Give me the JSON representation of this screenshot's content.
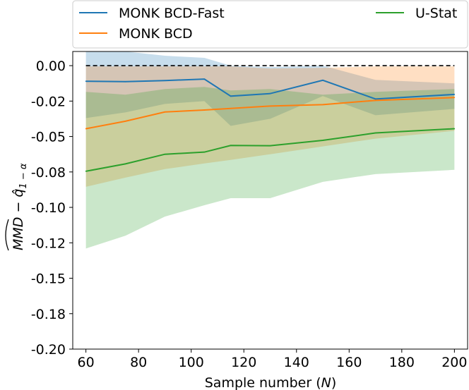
{
  "chart_data": {
    "type": "line",
    "title": "",
    "xlabel_prefix": "Sample number (",
    "xlabel_var": "N",
    "xlabel_suffix": ")",
    "ylabel_main": "MMD",
    "ylabel_minus": " − ",
    "ylabel_q": "q̂",
    "ylabel_sub": "1 − α",
    "xlim": [
      55,
      205
    ],
    "ylim": [
      -0.2,
      0.01
    ],
    "xticks": [
      60,
      80,
      100,
      120,
      140,
      160,
      180,
      200
    ],
    "xtick_labels": [
      "60",
      "80",
      "100",
      "120",
      "140",
      "160",
      "180",
      "200"
    ],
    "yticks": [
      0.0,
      -0.025,
      -0.05,
      -0.075,
      -0.1,
      -0.125,
      -0.15,
      -0.175,
      -0.2
    ],
    "ytick_labels": [
      "0.00",
      "-0.02",
      "-0.05",
      "-0.08",
      "-0.10",
      "-0.12",
      "-0.15",
      "-0.18",
      "-0.20"
    ],
    "reference_line": 0.0,
    "legend_position": "top",
    "series": [
      {
        "name": "MONK BCD-Fast",
        "color": "#1f77b4",
        "x": [
          60,
          75,
          90,
          105,
          115,
          130,
          150,
          170,
          200
        ],
        "values": [
          -0.011,
          -0.0113,
          -0.0105,
          -0.0095,
          -0.0215,
          -0.0197,
          -0.0103,
          -0.0235,
          -0.0203
        ],
        "upper": [
          0.01,
          0.01,
          0.007,
          0.0055,
          0.0,
          -0.001,
          0.0,
          -0.01,
          -0.0125
        ],
        "lower": [
          -0.037,
          -0.033,
          -0.027,
          -0.025,
          -0.0425,
          -0.0375,
          -0.0215,
          -0.035,
          -0.0305
        ]
      },
      {
        "name": "MONK BCD",
        "color": "#ff7f0e",
        "x": [
          60,
          75,
          90,
          105,
          115,
          130,
          150,
          170,
          200
        ],
        "values": [
          -0.0445,
          -0.0392,
          -0.0327,
          -0.0313,
          -0.0302,
          -0.0285,
          -0.0275,
          -0.0245,
          -0.0225
        ],
        "upper": [
          -0.0005,
          -0.0005,
          -0.0005,
          -0.0005,
          -0.0005,
          -0.002,
          -0.0015,
          -0.0005,
          -0.0005
        ],
        "lower": [
          -0.0855,
          -0.079,
          -0.073,
          -0.069,
          -0.0665,
          -0.0625,
          -0.057,
          -0.0515,
          -0.046
        ]
      },
      {
        "name": "U-Stat",
        "color": "#2ca02c",
        "x": [
          60,
          75,
          90,
          105,
          115,
          130,
          150,
          170,
          200
        ],
        "values": [
          -0.0745,
          -0.0693,
          -0.0625,
          -0.061,
          -0.0563,
          -0.0565,
          -0.0527,
          -0.0475,
          -0.0445
        ],
        "upper": [
          -0.0185,
          -0.0205,
          -0.0165,
          -0.015,
          -0.0175,
          -0.0165,
          -0.0205,
          -0.0185,
          -0.0165
        ],
        "lower": [
          -0.129,
          -0.12,
          -0.1065,
          -0.0985,
          -0.0935,
          -0.0935,
          -0.082,
          -0.0765,
          -0.0735
        ]
      }
    ]
  }
}
